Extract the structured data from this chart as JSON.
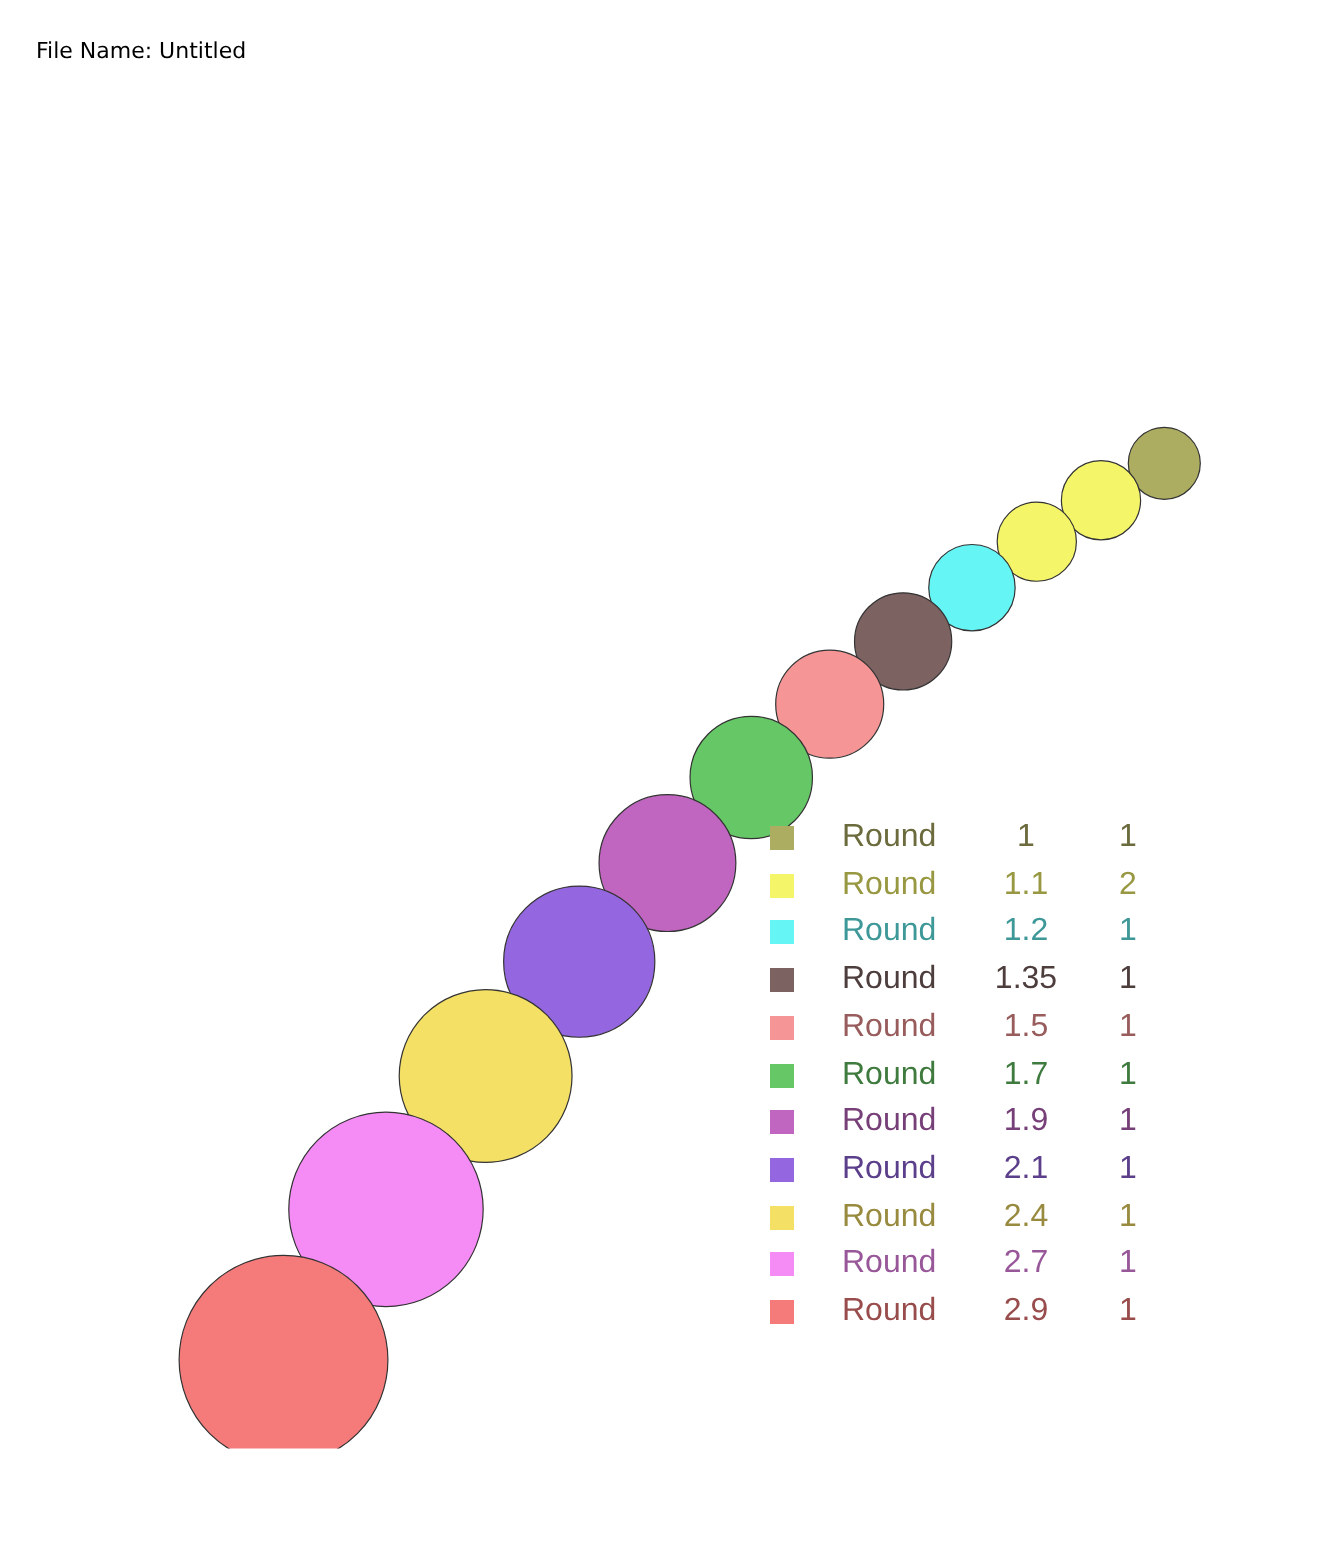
{
  "chart_data": {
    "type": "other",
    "annotations": [
      "File Name: Untitled"
    ],
    "data_labels": true,
    "categories": [
      "Round",
      "Round",
      "Round",
      "Round",
      "Round",
      "Round",
      "Round",
      "Round",
      "Round",
      "Round",
      "Round"
    ],
    "colors": [
      "#adad62",
      "#f5f56a",
      "#66f5f5",
      "#7d6262",
      "#f59595",
      "#66c766",
      "#c066c0",
      "#9466e0",
      "#f5e066",
      "#f58cf5",
      "#f57a7a"
    ],
    "series": [
      {
        "values": [
          1,
          1.1,
          1.2,
          1.35,
          1.5,
          1.7,
          1.9,
          2.1,
          2.4,
          2.7,
          2.9
        ]
      },
      {
        "values": [
          1,
          2,
          1,
          1,
          1,
          1,
          1,
          1,
          1,
          1,
          1
        ]
      }
    ]
  }
}
